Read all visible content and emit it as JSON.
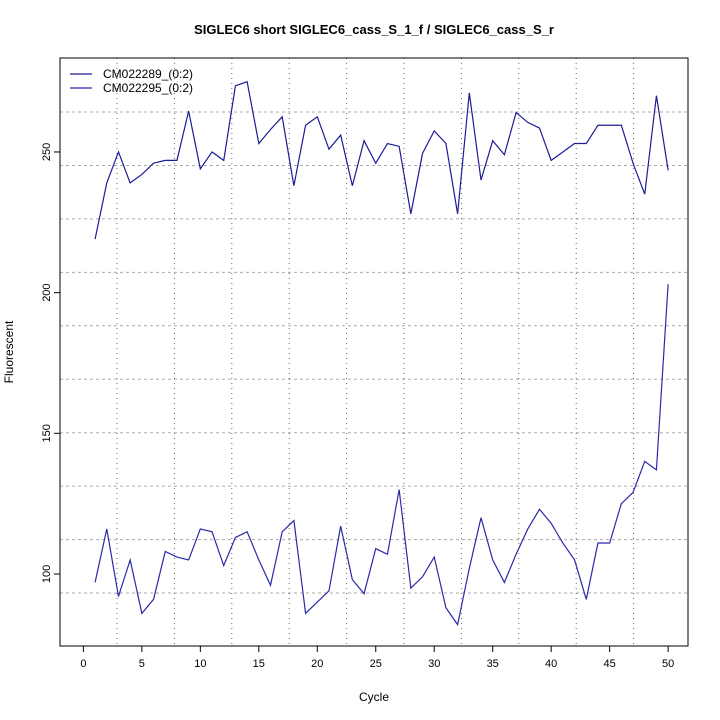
{
  "chart_data": {
    "type": "line",
    "title": "SIGLEC6 short SIGLEC6_cass_S_1_f / SIGLEC6_cass_S_r",
    "xlabel": "Cycle",
    "ylabel": "Fluorescent",
    "xlim": [
      -2,
      51.7
    ],
    "ylim": [
      74.4,
      283.4
    ],
    "x_ticks": [
      0,
      5,
      10,
      15,
      20,
      25,
      30,
      35,
      40,
      45,
      50
    ],
    "y_ticks": [
      100,
      150,
      200,
      250
    ],
    "grid": true,
    "legend_position": "top-left",
    "x": [
      1,
      2,
      3,
      4,
      5,
      6,
      7,
      8,
      9,
      10,
      11,
      12,
      13,
      14,
      15,
      16,
      17,
      18,
      19,
      20,
      21,
      22,
      23,
      24,
      25,
      26,
      27,
      28,
      29,
      30,
      31,
      32,
      33,
      34,
      35,
      36,
      37,
      38,
      39,
      40,
      41,
      42,
      43,
      44,
      45,
      46,
      47,
      48,
      49,
      50
    ],
    "series": [
      {
        "name": "CM022289_(0:2)",
        "color": "#1c1c96",
        "values": [
          219,
          239,
          250,
          239,
          242,
          246,
          247,
          247,
          264.5,
          244,
          250,
          247,
          273.5,
          275,
          253,
          258,
          262.5,
          238,
          259.5,
          262.5,
          251,
          256,
          238,
          254,
          246,
          253,
          252,
          228,
          249.5,
          257.5,
          253,
          228,
          271,
          240,
          254,
          249,
          264,
          260.5,
          258.5,
          247,
          250,
          253,
          253,
          259.5,
          259.5,
          259.5,
          246,
          235,
          270,
          243.5
        ]
      },
      {
        "name": "CM022295_(0:2)",
        "color": "#2a2aa8",
        "values": [
          97,
          116,
          92,
          105,
          86,
          91,
          108,
          106,
          105,
          116,
          115,
          103,
          113,
          115,
          105,
          96,
          115,
          119,
          86,
          90,
          94,
          117,
          98,
          93,
          109,
          107,
          130,
          95,
          99,
          106,
          88,
          82,
          102,
          120,
          105,
          97,
          107,
          116,
          123,
          118,
          111,
          105,
          91,
          111,
          111,
          125,
          129,
          140,
          137,
          203
        ]
      }
    ]
  }
}
